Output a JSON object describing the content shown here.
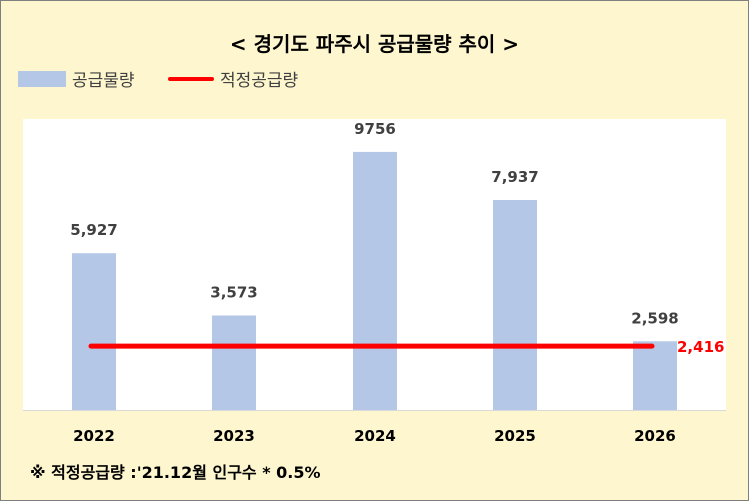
{
  "chart_data": {
    "type": "bar",
    "title": "< 경기도 파주시 공급물량 추이 >",
    "categories": [
      "2022",
      "2023",
      "2024",
      "2025",
      "2026"
    ],
    "series": [
      {
        "name": "공급물량",
        "type": "bar",
        "values": [
          5927,
          3573,
          9756,
          7937,
          2598
        ],
        "labels": [
          "5,927",
          "3,573",
          "9756",
          "7,937",
          "2,598"
        ],
        "color": "#b4c7e7"
      },
      {
        "name": "적정공급량",
        "type": "line",
        "value": 2416,
        "label": "2,416",
        "color": "#ff0000"
      }
    ],
    "ylim": [
      0,
      11000
    ],
    "grid": false,
    "legend_position": "top-left",
    "footnote": "※ 적정공급량 :'21.12월 인구수 * 0.5%"
  }
}
